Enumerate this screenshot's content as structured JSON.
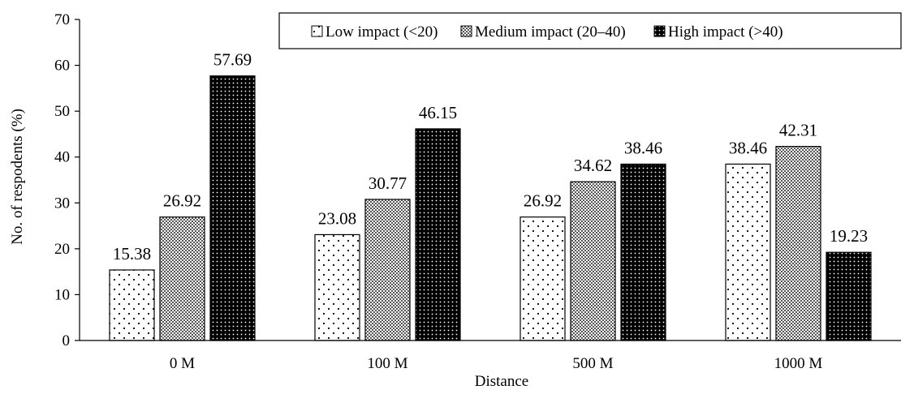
{
  "chart_data": {
    "type": "bar",
    "xlabel": "Distance",
    "ylabel": "No. of respodents (%)",
    "ylim": [
      0,
      70
    ],
    "yticks": [
      0,
      10,
      20,
      30,
      40,
      50,
      60,
      70
    ],
    "grid": false,
    "legend_position": "top-right",
    "categories": [
      "0 M",
      "100 M",
      "500 M",
      "1000 M"
    ],
    "series": [
      {
        "name": "Low impact (<20)",
        "pattern": "sparse-dots",
        "values": [
          15.38,
          23.08,
          26.92,
          38.46
        ]
      },
      {
        "name": "Medium impact (20–40)",
        "pattern": "checker",
        "values": [
          26.92,
          30.77,
          34.62,
          42.31
        ]
      },
      {
        "name": "High impact (>40)",
        "pattern": "dense-dark",
        "values": [
          57.69,
          46.15,
          38.46,
          19.23
        ]
      }
    ],
    "data_labels": [
      [
        "15.38",
        "26.92",
        "57.69"
      ],
      [
        "23.08",
        "30.77",
        "46.15"
      ],
      [
        "26.92",
        "34.62",
        "38.46"
      ],
      [
        "38.46",
        "42.31",
        "19.23"
      ]
    ]
  }
}
